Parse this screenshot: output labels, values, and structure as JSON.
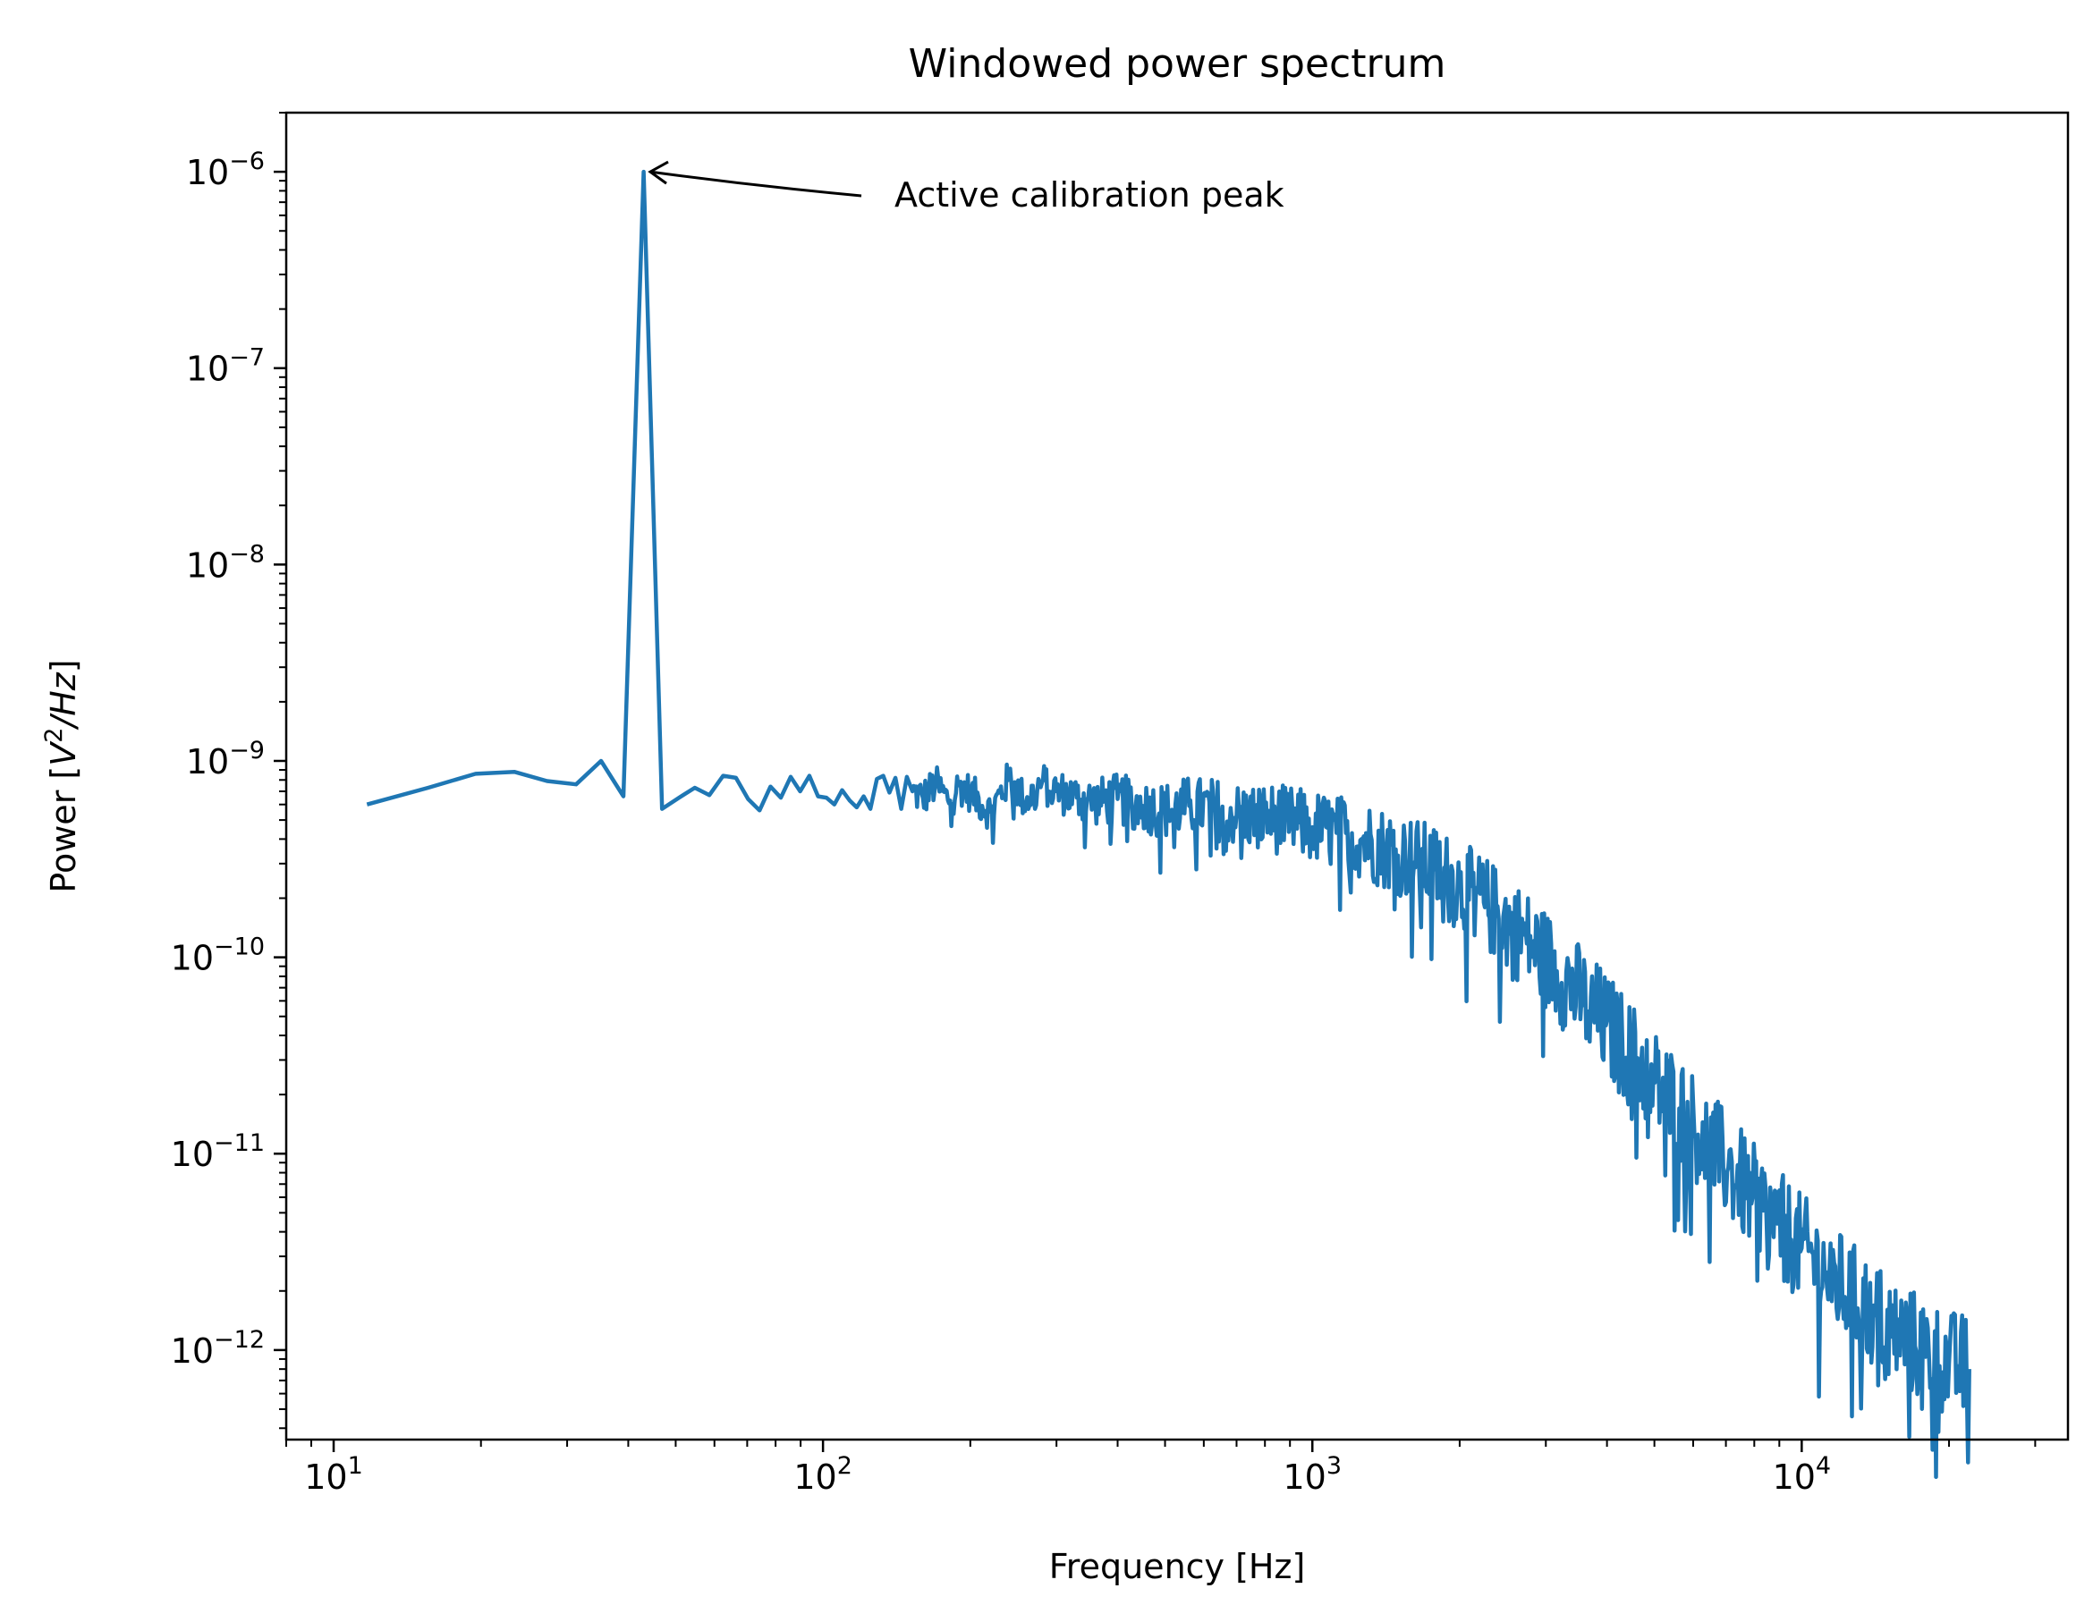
{
  "chart_data": {
    "type": "line",
    "title": "Windowed power spectrum",
    "xlabel": "Frequency [Hz]",
    "ylabel": {
      "prefix": "Power [",
      "sym": "V",
      "sup": "2",
      "mid": "/",
      "sym2": "Hz",
      "suffix": "]"
    },
    "x_scale": "log",
    "y_scale": "log",
    "xlim": [
      8,
      35000
    ],
    "ylim": [
      3.5e-13,
      2e-06
    ],
    "x_ticks": [
      {
        "value": 10,
        "base": "10",
        "exp": "1"
      },
      {
        "value": 100,
        "base": "10",
        "exp": "2"
      },
      {
        "value": 1000,
        "base": "10",
        "exp": "3"
      },
      {
        "value": 10000,
        "base": "10",
        "exp": "4"
      }
    ],
    "y_ticks": [
      {
        "value": 1e-12,
        "base": "10",
        "exp": "−12"
      },
      {
        "value": 1e-11,
        "base": "10",
        "exp": "−11"
      },
      {
        "value": 1e-10,
        "base": "10",
        "exp": "−10"
      },
      {
        "value": 1e-09,
        "base": "10",
        "exp": "−9"
      },
      {
        "value": 1e-08,
        "base": "10",
        "exp": "−8"
      },
      {
        "value": 1e-07,
        "base": "10",
        "exp": "−7"
      },
      {
        "value": 1e-06,
        "base": "10",
        "exp": "−6"
      }
    ],
    "grid": false,
    "series": [
      {
        "color": "#1f77b4",
        "x": [
          11.7,
          15.6,
          19.5,
          23.4,
          27.3,
          31.3,
          35.2,
          39.1,
          43.0,
          46.9,
          50.8,
          54.7,
          58.6,
          62.5,
          66.4,
          70.3,
          74.2,
          78.1,
          82.0,
          85.9,
          89.8,
          93.8,
          97.7,
          101.6,
          105.5,
          109.4,
          113.3,
          117.2,
          121.1,
          125.0,
          128.9,
          132.8,
          136.7,
          140.6,
          144.5,
          148.4,
          152.3,
          160,
          170,
          180,
          190,
          200,
          220,
          240,
          260,
          280,
          300,
          330,
          360,
          400,
          450,
          500,
          560,
          630,
          700,
          800,
          900,
          1000,
          1120,
          1260,
          1410,
          1580,
          1780,
          2000,
          2240,
          2510,
          2820,
          3160,
          3550,
          3980,
          4470,
          5010,
          5620,
          6310,
          7080,
          7940,
          8910,
          10000,
          11200,
          12600,
          14100,
          15800,
          17800,
          20000,
          22000
        ],
        "y": [
          6e-10,
          7.3e-10,
          8.6e-10,
          8.8e-10,
          7.9e-10,
          7.6e-10,
          1e-09,
          6.6e-10,
          1e-06,
          5.7e-10,
          6.5e-10,
          7.3e-10,
          6.7e-10,
          8.4e-10,
          8.2e-10,
          6.4e-10,
          5.6e-10,
          7.4e-10,
          6.5e-10,
          8.3e-10,
          7e-10,
          8.4e-10,
          6.6e-10,
          6.5e-10,
          6e-10,
          7.1e-10,
          6.3e-10,
          5.8e-10,
          6.6e-10,
          5.7e-10,
          8.1e-10,
          8.4e-10,
          6.9e-10,
          8.2e-10,
          5.7e-10,
          8.3e-10,
          7e-10,
          6.5e-10,
          7.6e-10,
          6.3e-10,
          7.5e-10,
          6.9e-10,
          5.5e-10,
          8.1e-10,
          6.2e-10,
          7.7e-10,
          7e-10,
          6.5e-10,
          6.2e-10,
          6.4e-10,
          5.9e-10,
          5.6e-10,
          5.9e-10,
          5.7e-10,
          5.3e-10,
          5.2e-10,
          4.9e-10,
          4.6e-10,
          4.3e-10,
          4e-10,
          3.6e-10,
          3.2e-10,
          2.8e-10,
          2.3e-10,
          1.9e-10,
          1.5e-10,
          1.15e-10,
          8.5e-11,
          6.2e-11,
          4.5e-11,
          3.2e-11,
          2.3e-11,
          1.7e-11,
          1.2e-11,
          8.5e-12,
          6e-12,
          4.4e-12,
          3.3e-12,
          2.5e-12,
          1.9e-12,
          1.5e-12,
          1.2e-12,
          1e-12,
          8.5e-13,
          8e-13
        ]
      }
    ],
    "annotation": {
      "text": "Active calibration peak",
      "x": 39.1,
      "y": 1e-06
    }
  }
}
